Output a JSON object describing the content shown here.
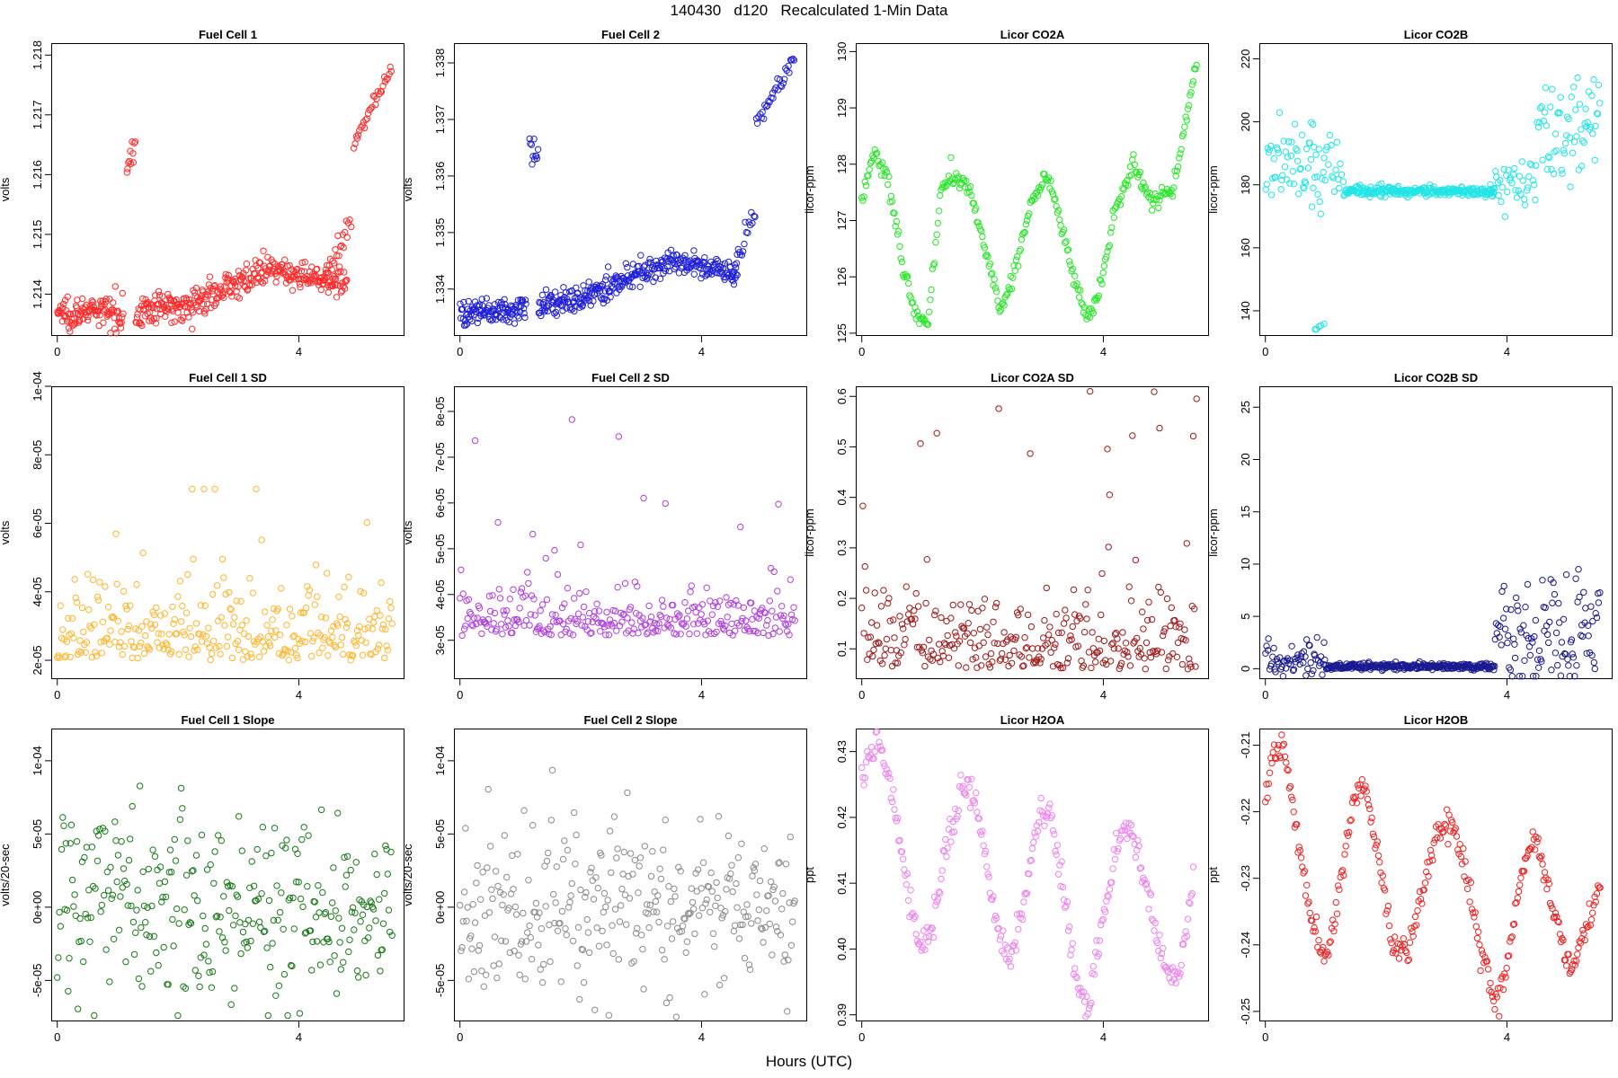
{
  "page": {
    "title": "140430   d120   Recalculated 1-Min Data",
    "xlabel": "Hours (UTC)"
  },
  "chart_data": [
    {
      "id": "fc1",
      "type": "scatter",
      "title": "Fuel Cell 1",
      "ylabel": "volts",
      "color": "#ff2a2a",
      "xlim": [
        -0.1,
        5.75
      ],
      "ylim": [
        1.2133,
        1.2182
      ],
      "xticks": [
        0,
        4
      ],
      "xtick_labels": [
        "0",
        "4"
      ],
      "yticks": [
        1.214,
        1.215,
        1.216,
        1.217,
        1.218
      ],
      "ytick_labels": [
        "1.214",
        "1.215",
        "1.216",
        "1.217",
        "1.218"
      ],
      "segments": [
        [
          0,
          1.1,
          1.2137,
          1.2137,
          0.00013,
          2.0
        ],
        [
          1.15,
          1.3,
          1.2163,
          1.2163,
          0.00014,
          1.5
        ],
        [
          1.3,
          2.5,
          1.2137,
          1.2139,
          0.00013,
          2.0
        ],
        [
          2.5,
          3.5,
          1.214,
          1.2144,
          0.00012,
          1.8
        ],
        [
          3.5,
          4.8,
          1.2144,
          1.2142,
          0.0001,
          1.8
        ],
        [
          4.4,
          4.88,
          1.2142,
          1.2153,
          0.0001,
          1.0
        ],
        [
          4.9,
          5.55,
          1.2165,
          1.2178,
          6e-05,
          1.0
        ]
      ]
    },
    {
      "id": "fc2",
      "type": "scatter",
      "title": "Fuel Cell 2",
      "ylabel": "volts",
      "color": "#1f1fd8",
      "xlim": [
        -0.1,
        5.75
      ],
      "ylim": [
        1.33317,
        1.33835
      ],
      "xticks": [
        0,
        4
      ],
      "xtick_labels": [
        "0",
        "4"
      ],
      "yticks": [
        1.334,
        1.335,
        1.336,
        1.337,
        1.338
      ],
      "ytick_labels": [
        "1.334",
        "1.335",
        "1.336",
        "1.337",
        "1.338"
      ],
      "segments": [
        [
          0,
          1.1,
          1.3336,
          1.3336,
          0.00012,
          2.0
        ],
        [
          1.15,
          1.3,
          1.3365,
          1.3364,
          0.00015,
          1.5
        ],
        [
          1.3,
          2.5,
          1.3337,
          1.334,
          0.00012,
          2.0
        ],
        [
          2.5,
          3.5,
          1.3341,
          1.3345,
          0.00011,
          1.8
        ],
        [
          3.5,
          4.6,
          1.3345,
          1.3343,
          0.0001,
          1.8
        ],
        [
          4.5,
          4.9,
          1.3343,
          1.3354,
          0.00012,
          1.0
        ],
        [
          4.9,
          5.55,
          1.3369,
          1.3381,
          7e-05,
          1.0
        ]
      ]
    },
    {
      "id": "co2a",
      "type": "scatter",
      "title": "Licor CO2A",
      "ylabel": "licor-ppm",
      "color": "#22e822",
      "xlim": [
        -0.1,
        5.75
      ],
      "ylim": [
        124.95,
        130.15
      ],
      "xticks": [
        0,
        4
      ],
      "xtick_labels": [
        "0",
        "4"
      ],
      "yticks": [
        125,
        126,
        127,
        128,
        129,
        130
      ],
      "ytick_labels": [
        "125",
        "126",
        "127",
        "128",
        "129",
        "130"
      ],
      "curve": [
        [
          0,
          127.4
        ],
        [
          0.2,
          128.2
        ],
        [
          0.45,
          127.7
        ],
        [
          0.7,
          126.0
        ],
        [
          0.9,
          125.3
        ],
        [
          1.1,
          125.2
        ],
        [
          1.3,
          127.5
        ],
        [
          1.5,
          127.8
        ],
        [
          1.8,
          127.5
        ],
        [
          2.0,
          126.7
        ],
        [
          2.3,
          125.4
        ],
        [
          2.5,
          126.0
        ],
        [
          2.8,
          127.3
        ],
        [
          3.05,
          127.8
        ],
        [
          3.25,
          127.2
        ],
        [
          3.5,
          126.0
        ],
        [
          3.75,
          125.2
        ],
        [
          3.95,
          125.8
        ],
        [
          4.2,
          127.2
        ],
        [
          4.5,
          128.0
        ],
        [
          4.8,
          127.3
        ],
        [
          5.15,
          127.6
        ],
        [
          5.4,
          128.9
        ],
        [
          5.55,
          129.8
        ]
      ],
      "noise": 0.08,
      "step": 0.018
    },
    {
      "id": "co2b",
      "type": "scatter",
      "title": "Licor CO2B",
      "ylabel": "licor-ppm",
      "color": "#22e5e5",
      "xlim": [
        -0.1,
        5.75
      ],
      "ylim": [
        132,
        225
      ],
      "xticks": [
        0,
        4
      ],
      "xtick_labels": [
        "0",
        "4"
      ],
      "yticks": [
        140,
        160,
        180,
        200,
        220
      ],
      "ytick_labels": [
        "140",
        "160",
        "180",
        "200",
        "220"
      ],
      "segments": [
        [
          0,
          1.0,
          188,
          186,
          6,
          1.2
        ],
        [
          0.75,
          0.8,
          200,
          200,
          0.5,
          0.5
        ],
        [
          0.8,
          1.0,
          135,
          135,
          0.4,
          0.5
        ],
        [
          1.0,
          1.3,
          187,
          185,
          4,
          1.0
        ],
        [
          1.3,
          3.8,
          178,
          178,
          0.8,
          2.0
        ],
        [
          3.7,
          4.5,
          181,
          182,
          4,
          1.0
        ],
        [
          4.5,
          5.55,
          198,
          200,
          9,
          1.2
        ]
      ]
    },
    {
      "id": "fc1sd",
      "type": "scatter",
      "title": "Fuel Cell 1 SD",
      "ylabel": "volts",
      "color": "#ffb52e",
      "xlim": [
        -0.1,
        5.75
      ],
      "ylim": [
        1.45e-05,
        0.0001
      ],
      "xticks": [
        0,
        4
      ],
      "xtick_labels": [
        "0",
        "4"
      ],
      "yticks": [
        2e-05,
        4e-05,
        6e-05,
        8e-05,
        0.0001
      ],
      "ytick_labels": [
        "2e-05",
        "4e-05",
        "6e-05",
        "8e-05",
        "1e-04"
      ],
      "random": [
        0,
        5.55,
        2e-05,
        1.8e-05,
        1.5e-05,
        7e-05
      ]
    },
    {
      "id": "fc2sd",
      "type": "scatter",
      "title": "Fuel Cell 2 SD",
      "ylabel": "volts",
      "color": "#b040e0",
      "xlim": [
        -0.1,
        5.75
      ],
      "ylim": [
        2.15e-05,
        8.55e-05
      ],
      "xticks": [
        0,
        4
      ],
      "xtick_labels": [
        "0",
        "4"
      ],
      "yticks": [
        3e-05,
        4e-05,
        5e-05,
        6e-05,
        7e-05,
        8e-05
      ],
      "ytick_labels": [
        "3e-05",
        "4e-05",
        "5e-05",
        "6e-05",
        "7e-05",
        "8e-05"
      ],
      "random": [
        0,
        5.55,
        3.1e-05,
        8e-06,
        2.3e-05,
        8.3e-05
      ]
    },
    {
      "id": "co2asd",
      "type": "scatter",
      "title": "Licor CO2A SD",
      "ylabel": "licor-ppm",
      "color": "#a01a1a",
      "xlim": [
        -0.1,
        5.75
      ],
      "ylim": [
        0.04,
        0.62
      ],
      "xticks": [
        0,
        4
      ],
      "xtick_labels": [
        "0",
        "4"
      ],
      "yticks": [
        0.1,
        0.2,
        0.3,
        0.4,
        0.5,
        0.6
      ],
      "ytick_labels": [
        "0.1",
        "0.2",
        "0.3",
        "0.4",
        "0.5",
        "0.6"
      ],
      "random": [
        0,
        5.55,
        0.06,
        0.12,
        0.06,
        0.61
      ]
    },
    {
      "id": "co2bsd",
      "type": "scatter",
      "title": "Licor CO2B SD",
      "ylabel": "licor-ppm",
      "color": "#1a1a90",
      "xlim": [
        -0.1,
        5.75
      ],
      "ylim": [
        -1,
        27
      ],
      "xticks": [
        0,
        4
      ],
      "xtick_labels": [
        "0",
        "4"
      ],
      "yticks": [
        0,
        5,
        10,
        15,
        20,
        25
      ],
      "ytick_labels": [
        "0",
        "5",
        "10",
        "15",
        "20",
        "25"
      ],
      "segments": [
        [
          0,
          1.0,
          0.8,
          0.5,
          0.9,
          1.2
        ],
        [
          1.0,
          3.8,
          0.2,
          0.2,
          0.15,
          2.0
        ],
        [
          3.8,
          5.55,
          2.0,
          4.5,
          3.0,
          1.2
        ]
      ]
    },
    {
      "id": "fc1slope",
      "type": "scatter",
      "title": "Fuel Cell 1 Slope",
      "ylabel": "volts/20-sec",
      "color": "#1a7a1a",
      "xlim": [
        -0.1,
        5.75
      ],
      "ylim": [
        -7.8e-05,
        0.000122
      ],
      "xticks": [
        0,
        4
      ],
      "xtick_labels": [
        "0",
        "4"
      ],
      "yticks": [
        -5e-05,
        0,
        5e-05,
        0.0001
      ],
      "ytick_labels": [
        "-5e-05",
        "0e+00",
        "5e-05",
        "1e-04"
      ],
      "normal": [
        0,
        5.55,
        0,
        3e-05,
        -7.4e-05,
        0.000113
      ]
    },
    {
      "id": "fc2slope",
      "type": "scatter",
      "title": "Fuel Cell 2 Slope",
      "ylabel": "volts/20-sec",
      "color": "#8c8c8c",
      "xlim": [
        -0.1,
        5.75
      ],
      "ylim": [
        -7.8e-05,
        0.000122
      ],
      "xticks": [
        0,
        4
      ],
      "xtick_labels": [
        "0",
        "4"
      ],
      "yticks": [
        -5e-05,
        0,
        5e-05,
        0.0001
      ],
      "ytick_labels": [
        "-5e-05",
        "0e+00",
        "5e-05",
        "1e-04"
      ],
      "normal": [
        0,
        5.55,
        0,
        3e-05,
        -7.5e-05,
        0.000112
      ]
    },
    {
      "id": "h2oa",
      "type": "scatter",
      "title": "Licor H2OA",
      "ylabel": "ppt",
      "color": "#ee82ee",
      "xlim": [
        -0.1,
        5.75
      ],
      "ylim": [
        0.389,
        0.4335
      ],
      "xticks": [
        0,
        4
      ],
      "xtick_labels": [
        "0",
        "4"
      ],
      "yticks": [
        0.39,
        0.4,
        0.41,
        0.42,
        0.43
      ],
      "ytick_labels": [
        "0.39",
        "0.40",
        "0.41",
        "0.42",
        "0.43"
      ],
      "curve": [
        [
          0,
          0.426
        ],
        [
          0.25,
          0.432
        ],
        [
          0.45,
          0.426
        ],
        [
          0.75,
          0.41
        ],
        [
          0.95,
          0.4
        ],
        [
          1.15,
          0.403
        ],
        [
          1.4,
          0.415
        ],
        [
          1.7,
          0.426
        ],
        [
          1.95,
          0.42
        ],
        [
          2.2,
          0.405
        ],
        [
          2.45,
          0.398
        ],
        [
          2.7,
          0.408
        ],
        [
          2.95,
          0.421
        ],
        [
          3.15,
          0.42
        ],
        [
          3.35,
          0.408
        ],
        [
          3.55,
          0.395
        ],
        [
          3.75,
          0.392
        ],
        [
          4.0,
          0.405
        ],
        [
          4.3,
          0.418
        ],
        [
          4.5,
          0.418
        ],
        [
          4.8,
          0.405
        ],
        [
          5.05,
          0.396
        ],
        [
          5.25,
          0.396
        ],
        [
          5.5,
          0.41
        ]
      ],
      "noise": 0.0012,
      "step": 0.018
    },
    {
      "id": "h2ob",
      "type": "scatter",
      "title": "Licor H2OB",
      "ylabel": "ppt",
      "color": "#ee2222",
      "xlim": [
        -0.1,
        5.75
      ],
      "ylim": [
        -0.2515,
        -0.2075
      ],
      "xticks": [
        0,
        4
      ],
      "xtick_labels": [
        "0",
        "4"
      ],
      "yticks": [
        -0.25,
        -0.24,
        -0.23,
        -0.22,
        -0.21
      ],
      "ytick_labels": [
        "-0.25",
        "-0.24",
        "-0.23",
        "-0.22",
        "-0.21"
      ],
      "curve": [
        [
          0,
          -0.218
        ],
        [
          0.15,
          -0.21
        ],
        [
          0.35,
          -0.212
        ],
        [
          0.55,
          -0.225
        ],
        [
          0.8,
          -0.238
        ],
        [
          1.0,
          -0.243
        ],
        [
          1.2,
          -0.233
        ],
        [
          1.45,
          -0.218
        ],
        [
          1.65,
          -0.216
        ],
        [
          1.9,
          -0.228
        ],
        [
          2.1,
          -0.24
        ],
        [
          2.35,
          -0.241
        ],
        [
          2.55,
          -0.234
        ],
        [
          2.8,
          -0.224
        ],
        [
          3.05,
          -0.221
        ],
        [
          3.3,
          -0.228
        ],
        [
          3.55,
          -0.24
        ],
        [
          3.8,
          -0.249
        ],
        [
          4.0,
          -0.243
        ],
        [
          4.25,
          -0.229
        ],
        [
          4.45,
          -0.223
        ],
        [
          4.7,
          -0.232
        ],
        [
          5.05,
          -0.244
        ],
        [
          5.3,
          -0.238
        ],
        [
          5.55,
          -0.231
        ]
      ],
      "noise": 0.001,
      "step": 0.018
    }
  ]
}
